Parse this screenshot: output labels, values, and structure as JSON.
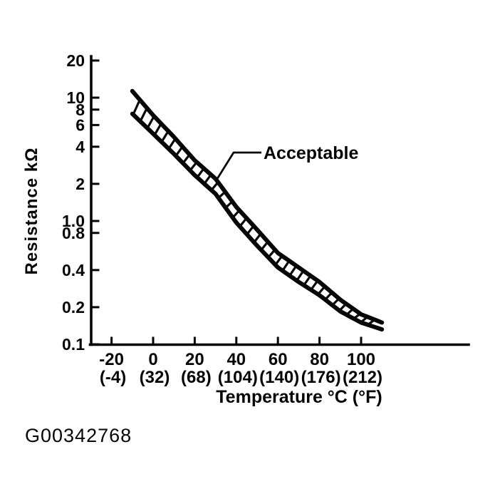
{
  "figure": {
    "code": "G00342768"
  },
  "chart_data": {
    "type": "area",
    "title": "",
    "xlabel": "Temperature °C (°F)",
    "ylabel": "Resistance kΩ",
    "band_label": "Acceptable",
    "y_scale": "log",
    "y_range_kohm": [
      0.1,
      20
    ],
    "x_range_c": [
      -30,
      152
    ],
    "grid": false,
    "x_ticks": [
      {
        "c": "-20",
        "f": "(-4)",
        "value": -20
      },
      {
        "c": "0",
        "f": "(32)",
        "value": 0
      },
      {
        "c": "20",
        "f": "(68)",
        "value": 20
      },
      {
        "c": "40",
        "f": "(104)",
        "value": 40
      },
      {
        "c": "60",
        "f": "(140)",
        "value": 60
      },
      {
        "c": "80",
        "f": "(176)",
        "value": 80
      },
      {
        "c": "100",
        "f": "(212)",
        "value": 100
      }
    ],
    "y_ticks": [
      {
        "label": "20",
        "value": 20
      },
      {
        "label": "10",
        "value": 10
      },
      {
        "label": "8",
        "value": 8
      },
      {
        "label": "6",
        "value": 6
      },
      {
        "label": "4",
        "value": 4
      },
      {
        "label": "2",
        "value": 2
      },
      {
        "label": "1.0",
        "value": 1.0
      },
      {
        "label": "0.8",
        "value": 0.8
      },
      {
        "label": "0.4",
        "value": 0.4
      },
      {
        "label": "0.2",
        "value": 0.2
      },
      {
        "label": "0.1",
        "value": 0.1
      }
    ],
    "categories_temp_c": [
      -10,
      0,
      10,
      20,
      30,
      40,
      50,
      60,
      70,
      80,
      90,
      100,
      110
    ],
    "series": [
      {
        "name": "acceptable-upper-limit-kohm",
        "values": [
          11.3,
          7.2,
          4.8,
          3.1,
          2.2,
          1.3,
          0.85,
          0.55,
          0.42,
          0.32,
          0.23,
          0.175,
          0.15
        ]
      },
      {
        "name": "acceptable-lower-limit-kohm",
        "values": [
          7.4,
          5.1,
          3.5,
          2.35,
          1.66,
          0.97,
          0.63,
          0.42,
          0.32,
          0.25,
          0.185,
          0.15,
          0.132
        ]
      }
    ],
    "hatched_band": true
  }
}
